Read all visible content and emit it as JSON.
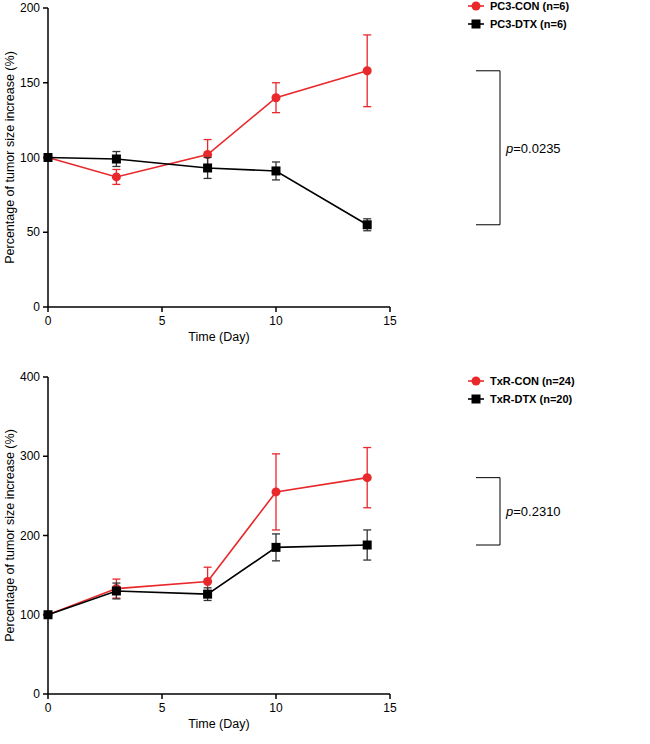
{
  "chart_data": [
    {
      "type": "line",
      "x_label": "Time (Day)",
      "y_label": "Percentage of tumor size increase (%)",
      "x": [
        0,
        3,
        7,
        10,
        14
      ],
      "xlim": [
        0,
        15
      ],
      "xticks": [
        0,
        5,
        10,
        15
      ],
      "ylim": [
        0,
        200
      ],
      "yticks": [
        0,
        50,
        100,
        150,
        200
      ],
      "grid": false,
      "legend": "right",
      "series": [
        {
          "name": "PC3-CON (n=6)",
          "color": "#e8282b",
          "marker": "circle",
          "line_style": "solid",
          "values": [
            100,
            87,
            102,
            140,
            158
          ],
          "errors": [
            0,
            5,
            10,
            10,
            24
          ]
        },
        {
          "name": "PC3-DTX (n=6)",
          "color": "#000000",
          "marker": "square",
          "line_style": "solid",
          "values": [
            100,
            99,
            93,
            91,
            55
          ],
          "errors": [
            0,
            5,
            7,
            6,
            4
          ]
        }
      ],
      "annotations": [
        "p=0.0235"
      ]
    },
    {
      "type": "line",
      "x_label": "Time (Day)",
      "y_label": "Percentage of tumor size increase (%)",
      "x": [
        0,
        3,
        7,
        10,
        14
      ],
      "xlim": [
        0,
        15
      ],
      "xticks": [
        0,
        5,
        10,
        15
      ],
      "ylim": [
        0,
        400
      ],
      "yticks": [
        0,
        100,
        200,
        300,
        400
      ],
      "grid": false,
      "legend": "right",
      "series": [
        {
          "name": "TxR-CON (n=24)",
          "color": "#e8282b",
          "marker": "circle",
          "line_style": "solid",
          "values": [
            100,
            133,
            142,
            255,
            273
          ],
          "errors": [
            0,
            12,
            18,
            48,
            38
          ]
        },
        {
          "name": "TxR-DTX (n=20)",
          "color": "#000000",
          "marker": "square",
          "line_style": "solid",
          "values": [
            100,
            130,
            126,
            185,
            188
          ],
          "errors": [
            0,
            10,
            8,
            17,
            19
          ]
        }
      ],
      "annotations": [
        "p=0.2310"
      ]
    }
  ]
}
